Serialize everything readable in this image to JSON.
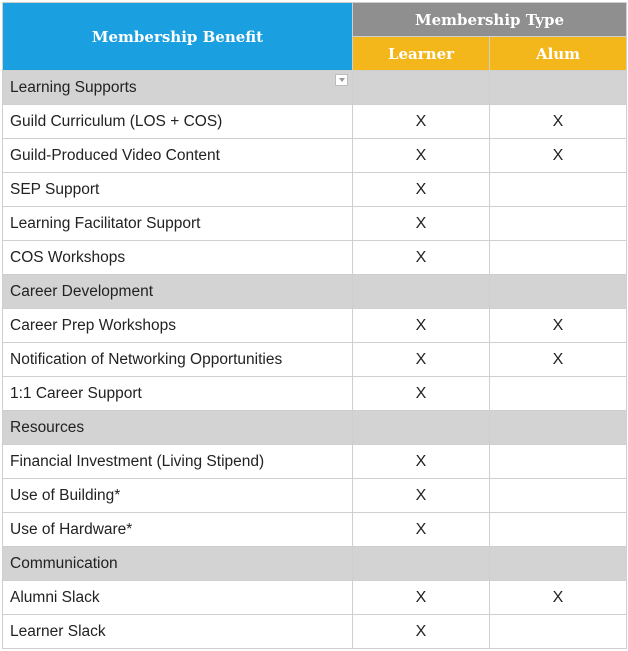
{
  "table": {
    "header": {
      "benefit": "Membership Benefit",
      "type": "Membership Type",
      "learner": "Learner",
      "alum": "Alum"
    },
    "sections": [
      {
        "title": "Learning Supports",
        "rows": [
          {
            "benefit": "Guild Curriculum (LOS + COS)",
            "learner": "X",
            "alum": "X"
          },
          {
            "benefit": "Guild-Produced Video Content",
            "learner": "X",
            "alum": "X"
          },
          {
            "benefit": "SEP Support",
            "learner": "X",
            "alum": ""
          },
          {
            "benefit": "Learning Facilitator Support",
            "learner": "X",
            "alum": ""
          },
          {
            "benefit": "COS Workshops",
            "learner": "X",
            "alum": ""
          }
        ]
      },
      {
        "title": "Career Development",
        "rows": [
          {
            "benefit": "Career Prep Workshops",
            "learner": "X",
            "alum": "X"
          },
          {
            "benefit": "Notification of Networking Opportunities",
            "learner": "X",
            "alum": "X"
          },
          {
            "benefit": "1:1 Career Support",
            "learner": "X",
            "alum": ""
          }
        ]
      },
      {
        "title": "Resources",
        "rows": [
          {
            "benefit": "Financial Investment (Living Stipend)",
            "learner": "X",
            "alum": ""
          },
          {
            "benefit": "Use of Building*",
            "learner": "X",
            "alum": ""
          },
          {
            "benefit": "Use of Hardware*",
            "learner": "X",
            "alum": ""
          }
        ]
      },
      {
        "title": "Communication",
        "rows": [
          {
            "benefit": "Alumni Slack",
            "learner": "X",
            "alum": "X"
          },
          {
            "benefit": "Learner Slack",
            "learner": "X",
            "alum": ""
          }
        ]
      }
    ],
    "colors": {
      "benefit_header": "#1a9fe0",
      "type_header": "#8f8f8f",
      "sub_header": "#f4b71b",
      "section_row": "#d3d3d3"
    },
    "icons": {
      "filter": "filter-dropdown-icon"
    }
  }
}
